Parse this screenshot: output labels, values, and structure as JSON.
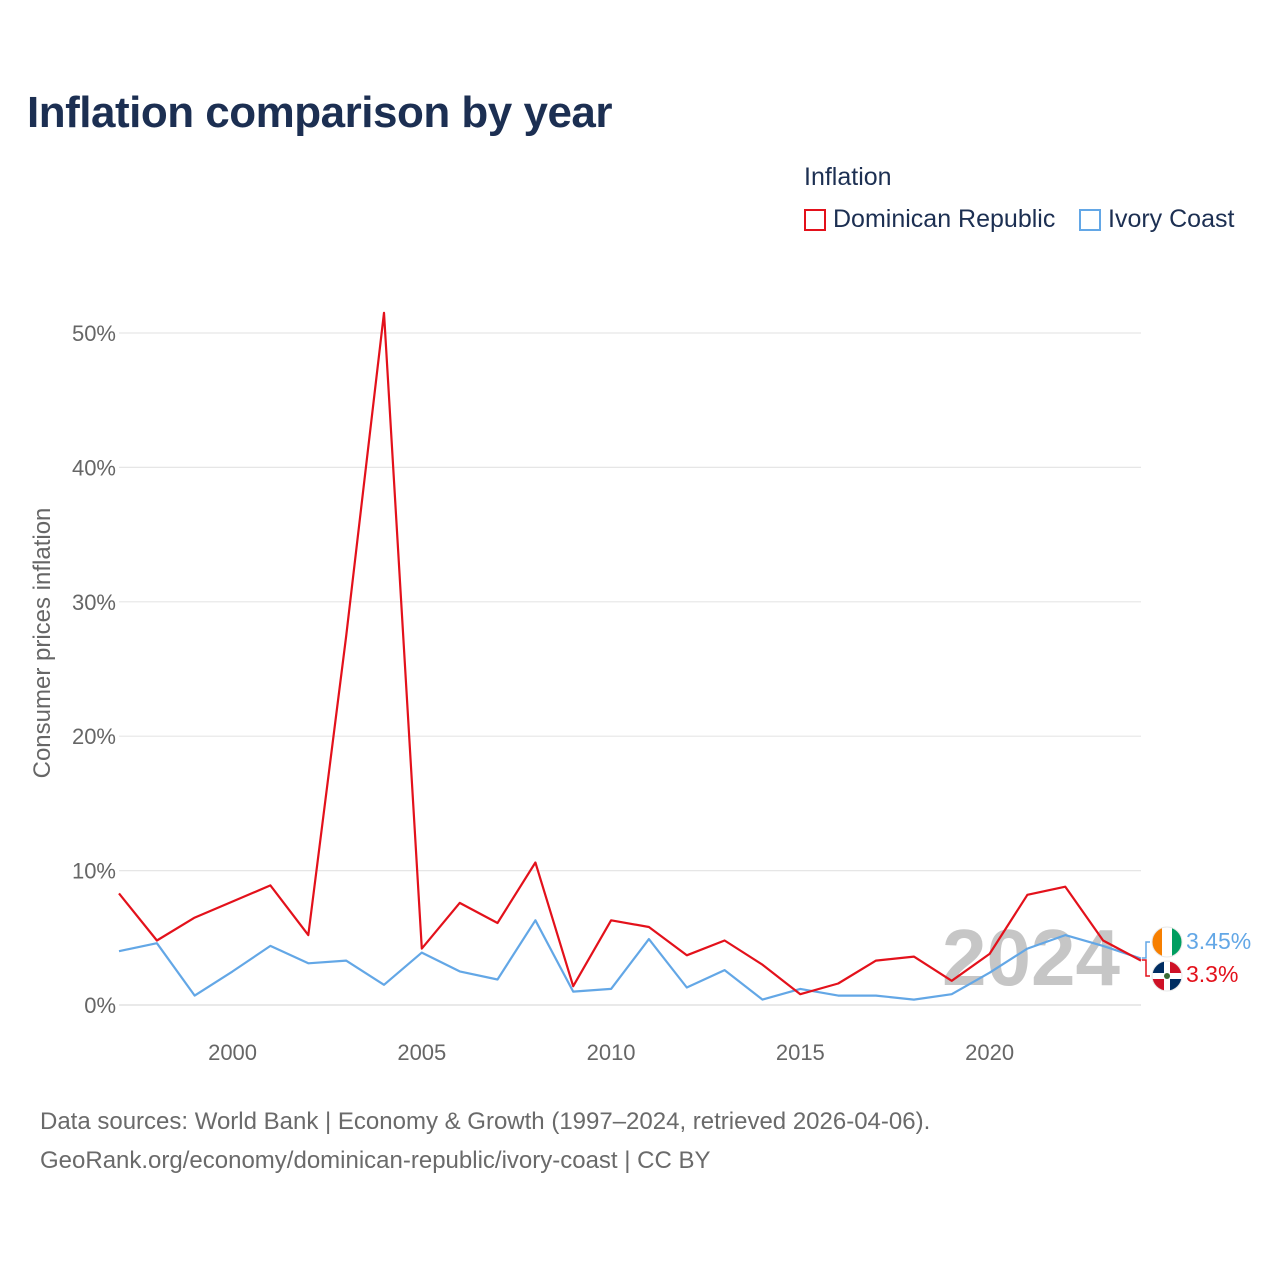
{
  "title": "Inflation comparison by year",
  "legend": {
    "title": "Inflation",
    "items": [
      {
        "label": "Dominican Republic",
        "color": "#e3111b"
      },
      {
        "label": "Ivory Coast",
        "color": "#63a7e6"
      }
    ]
  },
  "year_watermark": "2024",
  "end_labels": {
    "ivory_coast": "3.45%",
    "dominican_republic": "3.3%"
  },
  "source": {
    "line1": "Data sources: World Bank | Economy & Growth (1997–2024, retrieved 2026-04-06).",
    "line2": "GeoRank.org/economy/dominican-republic/ivory-coast | CC BY"
  },
  "chart_data": {
    "type": "line",
    "title": "Inflation comparison by year",
    "xlabel": "",
    "ylabel": "Consumer prices inflation",
    "x": [
      1997,
      1998,
      1999,
      2000,
      2001,
      2002,
      2003,
      2004,
      2005,
      2006,
      2007,
      2008,
      2009,
      2010,
      2011,
      2012,
      2013,
      2014,
      2015,
      2016,
      2017,
      2018,
      2019,
      2020,
      2021,
      2022,
      2023,
      2024
    ],
    "xticks": [
      2000,
      2005,
      2010,
      2015,
      2020
    ],
    "xtick_labels": [
      "2000",
      "2005",
      "2010",
      "2015",
      "2020"
    ],
    "yticks": [
      0,
      10,
      20,
      30,
      40,
      50
    ],
    "ytick_labels": [
      "0%",
      "10%",
      "20%",
      "30%",
      "40%",
      "50%"
    ],
    "xlim": [
      1997,
      2024
    ],
    "ylim": [
      -0.5,
      52
    ],
    "grid": true,
    "series": [
      {
        "name": "Dominican Republic",
        "color": "#e3111b",
        "values": [
          8.3,
          4.8,
          6.5,
          7.7,
          8.9,
          5.2,
          27.4,
          51.5,
          4.2,
          7.6,
          6.1,
          10.6,
          1.4,
          6.3,
          5.8,
          3.7,
          4.8,
          3.0,
          0.8,
          1.6,
          3.3,
          3.6,
          1.8,
          3.8,
          8.2,
          8.8,
          4.8,
          3.3
        ]
      },
      {
        "name": "Ivory Coast",
        "color": "#63a7e6",
        "values": [
          4.0,
          4.6,
          0.7,
          2.5,
          4.4,
          3.1,
          3.3,
          1.5,
          3.9,
          2.5,
          1.9,
          6.3,
          1.0,
          1.2,
          4.9,
          1.3,
          2.6,
          0.4,
          1.2,
          0.7,
          0.7,
          0.4,
          0.8,
          2.4,
          4.2,
          5.2,
          4.4,
          3.45
        ]
      }
    ]
  }
}
